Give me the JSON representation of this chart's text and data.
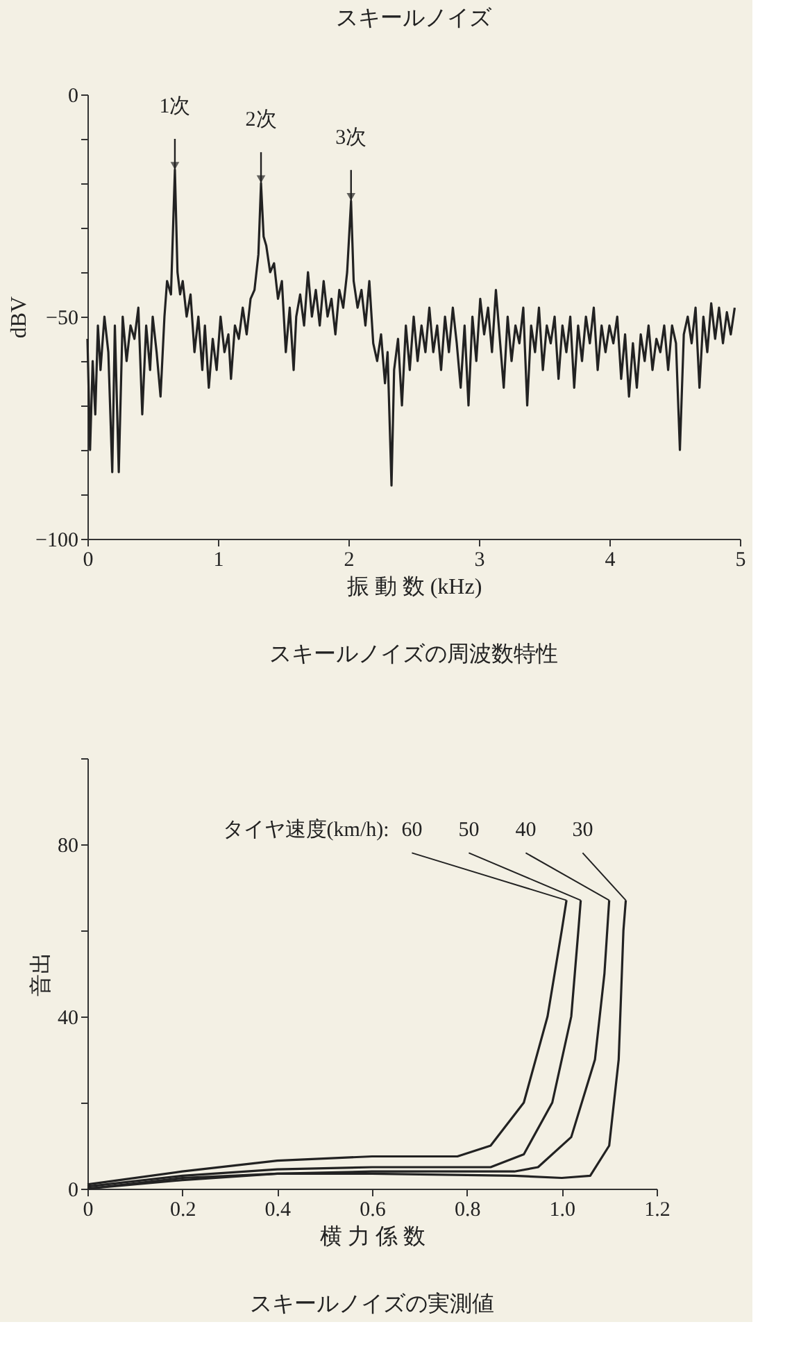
{
  "chart_data": [
    {
      "type": "line",
      "title": "スキールノイズ",
      "xlabel": "振 動 数 (kHz)",
      "ylabel": "dBV",
      "xlim": [
        0,
        5
      ],
      "xticks": [
        0,
        1,
        2,
        3,
        4,
        5
      ],
      "ylim": [
        -100,
        0
      ],
      "yticks": [
        {
          "value": -100,
          "label": "−100"
        },
        {
          "value": -90,
          "label": null
        },
        {
          "value": -80,
          "label": null
        },
        {
          "value": -70,
          "label": null
        },
        {
          "value": -60,
          "label": null
        },
        {
          "value": -50,
          "label": "−50"
        },
        {
          "value": -40,
          "label": null
        },
        {
          "value": -30,
          "label": null
        },
        {
          "value": -20,
          "label": null
        },
        {
          "value": -10,
          "label": null
        },
        0
      ],
      "grid": false,
      "annotations": [
        {
          "text": "1次",
          "x": 0.67,
          "y": -17
        },
        {
          "text": "2次",
          "x": 1.33,
          "y": -20
        },
        {
          "text": "3次",
          "x": 2.02,
          "y": -24
        },
        "スキールノイズの周波数特性"
      ],
      "series": [
        {
          "color": "#222222",
          "x": [
            0.0,
            0.02,
            0.04,
            0.06,
            0.08,
            0.1,
            0.13,
            0.16,
            0.19,
            0.21,
            0.24,
            0.27,
            0.3,
            0.33,
            0.36,
            0.39,
            0.42,
            0.45,
            0.48,
            0.5,
            0.53,
            0.56,
            0.59,
            0.61,
            0.64,
            0.67,
            0.69,
            0.71,
            0.73,
            0.76,
            0.79,
            0.82,
            0.85,
            0.88,
            0.9,
            0.93,
            0.96,
            0.99,
            1.02,
            1.05,
            1.08,
            1.1,
            1.13,
            1.16,
            1.19,
            1.22,
            1.25,
            1.28,
            1.31,
            1.33,
            1.35,
            1.37,
            1.4,
            1.43,
            1.46,
            1.49,
            1.52,
            1.55,
            1.58,
            1.6,
            1.63,
            1.66,
            1.69,
            1.72,
            1.75,
            1.78,
            1.81,
            1.84,
            1.87,
            1.9,
            1.93,
            1.96,
            1.99,
            2.02,
            2.04,
            2.07,
            2.1,
            2.13,
            2.16,
            2.19,
            2.22,
            2.25,
            2.28,
            2.3,
            2.33,
            2.35,
            2.38,
            2.41,
            2.44,
            2.47,
            2.5,
            2.53,
            2.56,
            2.59,
            2.62,
            2.65,
            2.68,
            2.71,
            2.74,
            2.77,
            2.8,
            2.83,
            2.86,
            2.89,
            2.92,
            2.95,
            2.98,
            3.01,
            3.04,
            3.07,
            3.1,
            3.13,
            3.16,
            3.19,
            3.22,
            3.25,
            3.28,
            3.31,
            3.34,
            3.37,
            3.4,
            3.43,
            3.46,
            3.49,
            3.52,
            3.55,
            3.58,
            3.61,
            3.64,
            3.67,
            3.7,
            3.73,
            3.76,
            3.79,
            3.82,
            3.85,
            3.88,
            3.91,
            3.94,
            3.97,
            4.0,
            4.03,
            4.06,
            4.09,
            4.12,
            4.15,
            4.18,
            4.21,
            4.24,
            4.27,
            4.3,
            4.33,
            4.36,
            4.39,
            4.42,
            4.45,
            4.48,
            4.51,
            4.54,
            4.57,
            4.6,
            4.63,
            4.66,
            4.69,
            4.72,
            4.75,
            4.78,
            4.81,
            4.84,
            4.87,
            4.9,
            4.93,
            4.96
          ],
          "values": [
            -55,
            -80,
            -60,
            -72,
            -52,
            -62,
            -50,
            -58,
            -85,
            -52,
            -85,
            -50,
            -60,
            -52,
            -55,
            -48,
            -72,
            -52,
            -62,
            -50,
            -58,
            -68,
            -50,
            -42,
            -45,
            -17,
            -40,
            -45,
            -42,
            -50,
            -45,
            -58,
            -50,
            -62,
            -52,
            -66,
            -55,
            -62,
            -50,
            -58,
            -54,
            -64,
            -52,
            -55,
            -48,
            -54,
            -46,
            -44,
            -36,
            -20,
            -32,
            -34,
            -40,
            -38,
            -46,
            -42,
            -58,
            -48,
            -62,
            -50,
            -45,
            -52,
            -40,
            -50,
            -44,
            -52,
            -42,
            -50,
            -46,
            -54,
            -44,
            -48,
            -40,
            -24,
            -42,
            -48,
            -44,
            -52,
            -42,
            -56,
            -60,
            -54,
            -65,
            -58,
            -88,
            -62,
            -55,
            -70,
            -52,
            -62,
            -50,
            -60,
            -52,
            -58,
            -48,
            -58,
            -52,
            -62,
            -50,
            -58,
            -48,
            -56,
            -66,
            -52,
            -70,
            -50,
            -60,
            -46,
            -54,
            -48,
            -58,
            -44,
            -55,
            -66,
            -50,
            -60,
            -52,
            -56,
            -48,
            -70,
            -52,
            -58,
            -48,
            -62,
            -52,
            -56,
            -50,
            -64,
            -52,
            -58,
            -50,
            -66,
            -52,
            -60,
            -50,
            -56,
            -48,
            -62,
            -52,
            -58,
            -52,
            -56,
            -50,
            -64,
            -54,
            -68,
            -56,
            -66,
            -54,
            -60,
            -52,
            -62,
            -55,
            -58,
            -52,
            -62,
            -52,
            -56,
            -80,
            -54,
            -50,
            -56,
            -48,
            -66,
            -50,
            -58,
            -47,
            -55,
            -48,
            -56,
            -49,
            -54,
            -48
          ]
        }
      ]
    },
    {
      "type": "line",
      "xlabel": "横 力 係 数",
      "ylabel": "音出",
      "legend_title": "タイヤ速度(km/h):",
      "xlim": [
        0,
        1.2
      ],
      "xticks": [
        0,
        0.2,
        0.4,
        0.6,
        0.8,
        {
          "value": 1,
          "label": "1.0"
        },
        1.2
      ],
      "ylim": [
        0,
        100
      ],
      "yticks": [
        0,
        {
          "value": 20,
          "label": null
        },
        40,
        {
          "value": 60,
          "label": null
        },
        80,
        {
          "value": 100,
          "label": null
        }
      ],
      "grid": false,
      "annotations": [
        "スキールノイズの実測値"
      ],
      "series": [
        {
          "name": "60",
          "color": "#222222",
          "x": [
            0,
            0.2,
            0.4,
            0.6,
            0.78,
            0.85,
            0.92,
            0.97,
            1.0,
            1.01
          ],
          "values": [
            1,
            4,
            6.5,
            7.5,
            7.5,
            10,
            20,
            40,
            60,
            67
          ]
        },
        {
          "name": "50",
          "color": "#222222",
          "x": [
            0,
            0.2,
            0.4,
            0.6,
            0.85,
            0.92,
            0.98,
            1.02,
            1.035,
            1.04
          ],
          "values": [
            0.5,
            3,
            4.5,
            5,
            5,
            8,
            20,
            40,
            60,
            67
          ]
        },
        {
          "name": "40",
          "color": "#222222",
          "x": [
            0,
            0.2,
            0.4,
            0.6,
            0.9,
            0.95,
            1.02,
            1.07,
            1.09,
            1.1
          ],
          "values": [
            0,
            2.5,
            3.5,
            4,
            4,
            5,
            12,
            30,
            50,
            67
          ]
        },
        {
          "name": "30",
          "color": "#222222",
          "x": [
            0,
            0.2,
            0.4,
            0.6,
            0.9,
            1.0,
            1.06,
            1.1,
            1.12,
            1.13,
            1.135
          ],
          "values": [
            0,
            2,
            3.5,
            3.5,
            3,
            2.5,
            3,
            10,
            30,
            60,
            67
          ]
        }
      ]
    }
  ]
}
